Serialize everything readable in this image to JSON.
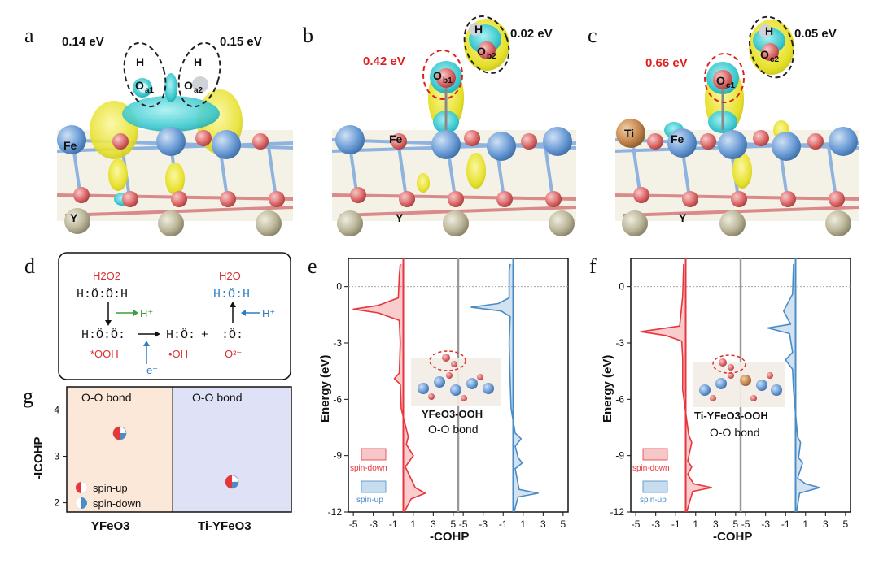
{
  "panels": {
    "a": {
      "label": "a",
      "energy_left": "0.14 eV",
      "energy_right": "0.15 eV",
      "atoms": {
        "h_left": "H",
        "h_right": "H",
        "o_left": "O",
        "o_left_sub": "a1",
        "o_right": "O",
        "o_right_sub": "a2",
        "fe": "Fe",
        "y": "Y"
      }
    },
    "b": {
      "label": "b",
      "energy_left": "0.42 eV",
      "energy_right": "0.02 eV",
      "atoms": {
        "h": "H",
        "o_top": "O",
        "o_top_sub": "b2",
        "o_bottom": "O",
        "o_bottom_sub": "b1",
        "fe": "Fe",
        "y": "Y"
      }
    },
    "c": {
      "label": "c",
      "energy_left": "0.66 eV",
      "energy_right": "0.05 eV",
      "atoms": {
        "h": "H",
        "o_top": "O",
        "o_top_sub": "c2",
        "o_bottom": "O",
        "o_bottom_sub": "c1",
        "ti": "Ti",
        "fe": "Fe",
        "y": "Y"
      }
    },
    "d": {
      "label": "d",
      "h2o2": "H2O2",
      "h2o": "H2O",
      "h2o2_struct": "H:Ö:Ö:H",
      "h2o_struct": "H:Ö:H",
      "ooh_struct": "H:Ö:Ö:",
      "oh_struct": "H:Ö:",
      "o_struct": ":Ö:",
      "hplus_left": "H⁺",
      "hplus_right": "H⁺",
      "ooh_label": "*OOH",
      "oh_label": "•OH",
      "o2_label": "O²⁻",
      "electron": "· e⁻",
      "plus": "+"
    },
    "e": {
      "label": "e",
      "inset_label": "YFeO3-OOH",
      "bond_label": "O-O bond",
      "legend_down": "spin-down",
      "legend_up": "spin-up"
    },
    "f": {
      "label": "f",
      "inset_label": "Ti-YFeO3-OOH",
      "bond_label": "O-O bond",
      "legend_down": "spin-down",
      "legend_up": "spin-up"
    },
    "g": {
      "label": "g",
      "bond_left": "O-O bond",
      "bond_right": "O-O bond",
      "legend_up": "spin-up",
      "legend_down": "spin-down"
    }
  },
  "colors": {
    "fe": "#6f9fd8",
    "o": "#e27878",
    "y": "#bdb79a",
    "ti": "#c98a52",
    "yellow": "#e6e02a",
    "cyan": "#36c6cc",
    "spin_down": "#e8353c",
    "spin_up": "#4a8cc6",
    "panel_g_left": "#fbe8d9",
    "panel_g_right": "#dfe2f6"
  },
  "chart_data": [
    {
      "type": "line",
      "panel": "e",
      "ylabel": "Energy (eV)",
      "xlabel": "-COHP",
      "ylim": [
        -12,
        1.5
      ],
      "yticks": [
        0,
        -3,
        -6,
        -9,
        -12
      ],
      "xtick_labels": [
        "-5",
        "-3",
        "-1",
        "1",
        "3",
        "5",
        "-5",
        "-3",
        "-1",
        "1",
        "3",
        "5"
      ],
      "series": [
        {
          "name": "spin-down",
          "color": "#e8353c",
          "energy": [
            1.2,
            0.6,
            -0.6,
            -1.0,
            -1.2,
            -1.4,
            -1.8,
            -3.0,
            -4.6,
            -4.9,
            -5.2,
            -6.5,
            -8.0,
            -8.4,
            -9.0,
            -9.3,
            -9.6,
            -10.7,
            -11.0,
            -11.3,
            -12.0
          ],
          "value": [
            -0.3,
            -0.4,
            -0.5,
            -2.5,
            -5.0,
            -2.5,
            -0.4,
            -0.3,
            -0.4,
            -0.9,
            -0.3,
            -0.2,
            0.5,
            0.3,
            1.0,
            0.6,
            0.2,
            1.2,
            2.2,
            0.8,
            0.1
          ]
        },
        {
          "name": "spin-up",
          "color": "#4a8cc6",
          "energy": [
            1.2,
            0.8,
            -0.6,
            -0.9,
            -1.1,
            -1.3,
            -1.6,
            -3.0,
            -5.0,
            -6.5,
            -7.8,
            -8.1,
            -8.5,
            -9.1,
            -9.4,
            -9.7,
            -10.8,
            -11.0,
            -11.2,
            -12.0
          ],
          "value": [
            -0.3,
            -0.4,
            -0.4,
            -1.5,
            -4.2,
            -1.2,
            -0.3,
            -0.4,
            -0.3,
            -0.2,
            0.2,
            0.8,
            0.2,
            0.5,
            0.9,
            0.2,
            0.6,
            2.5,
            0.5,
            0.1
          ]
        }
      ]
    },
    {
      "type": "line",
      "panel": "f",
      "ylabel": "Energy (eV)",
      "xlabel": "-COHP",
      "ylim": [
        -12,
        1.5
      ],
      "yticks": [
        0,
        -3,
        -6,
        -9,
        -12
      ],
      "xtick_labels": [
        "-5",
        "-3",
        "-1",
        "1",
        "3",
        "5",
        "-5",
        "-3",
        "-1",
        "1",
        "3",
        "5"
      ],
      "series": [
        {
          "name": "spin-down",
          "color": "#e8353c",
          "energy": [
            1.2,
            -0.5,
            -2.1,
            -2.4,
            -2.6,
            -2.9,
            -3.8,
            -5.5,
            -7.9,
            -8.3,
            -9.3,
            -9.6,
            -10.0,
            -10.5,
            -10.7,
            -10.9,
            -12.0
          ],
          "value": [
            -0.2,
            -0.3,
            -0.6,
            -4.5,
            -2.0,
            -0.4,
            -0.3,
            -0.3,
            0.3,
            0.6,
            0.2,
            0.6,
            0.2,
            0.8,
            2.6,
            0.7,
            0.1
          ]
        },
        {
          "name": "spin-up",
          "color": "#4a8cc6",
          "energy": [
            1.2,
            -0.4,
            -1.3,
            -2.0,
            -2.2,
            -2.5,
            -3.5,
            -3.9,
            -4.4,
            -5.5,
            -8.0,
            -8.3,
            -9.1,
            -9.4,
            -10.2,
            -10.5,
            -10.7,
            -11.0,
            -12.0
          ],
          "value": [
            -0.2,
            -0.3,
            -1.2,
            -0.5,
            -2.8,
            -0.6,
            -0.3,
            -1.0,
            -0.3,
            -0.2,
            0.2,
            0.5,
            0.3,
            0.7,
            0.2,
            1.0,
            2.4,
            0.4,
            0.1
          ]
        }
      ]
    },
    {
      "type": "scatter",
      "panel": "g",
      "ylabel": "-ICOHP",
      "categories": [
        "YFeO3",
        "Ti-YFeO3"
      ],
      "ylim": [
        1.8,
        4.5
      ],
      "yticks": [
        2,
        3,
        4
      ],
      "values": [
        3.5,
        2.45
      ]
    }
  ]
}
